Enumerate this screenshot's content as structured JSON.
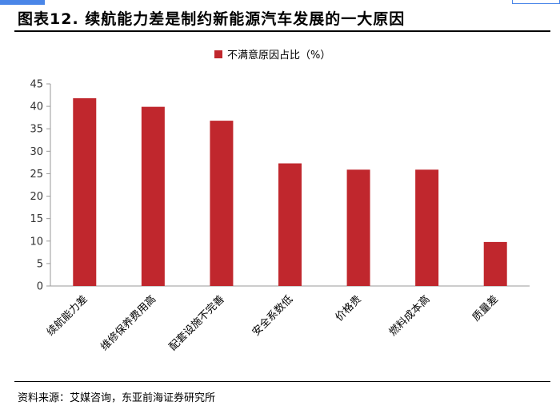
{
  "figure_title": "图表12. 续航能力差是制约新能源汽车发展的一大原因",
  "source": "资料来源：艾媒咨询，东亚前海证券研究所",
  "chart_data": {
    "type": "bar",
    "categories": [
      "续航能力差",
      "维修保养费用高",
      "配套设施不完善",
      "安全系数低",
      "价格贵",
      "燃料成本高",
      "质量差"
    ],
    "series": [
      {
        "name": "不满意原因占比（%）",
        "values": [
          41.8,
          39.9,
          36.8,
          27.3,
          25.9,
          25.9,
          9.8
        ],
        "color": "#c0272d"
      }
    ],
    "yticks": [
      0,
      5,
      10,
      15,
      20,
      25,
      30,
      35,
      40,
      45
    ],
    "ylim": [
      0,
      45
    ],
    "grid": false,
    "legend_position": "top-center"
  }
}
